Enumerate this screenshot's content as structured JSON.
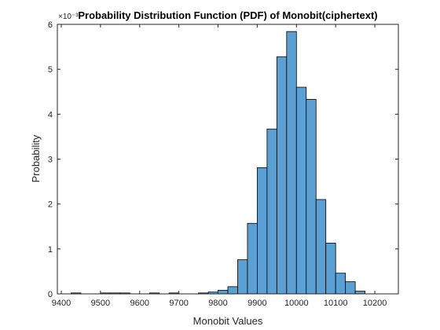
{
  "chart_data": {
    "type": "bar",
    "title": "Probability Distribution Function (PDF) of Monobit(ciphertext)",
    "xlabel": "Monobit Values",
    "ylabel": "Probability",
    "y_exponent_label": "×10⁻³",
    "xlim": [
      9400,
      10250
    ],
    "ylim": [
      0,
      0.006
    ],
    "y_tick_scale": 1000,
    "grid": false,
    "box": true,
    "bin_width": 25,
    "bar_color": "#5b9fd3",
    "bar_edge_color": "#000000",
    "x_ticks": [
      9400,
      9500,
      9600,
      9700,
      9800,
      9900,
      10000,
      10100,
      10200
    ],
    "y_ticks": [
      0,
      0.001,
      0.002,
      0.003,
      0.004,
      0.005,
      0.006
    ],
    "bins": [
      {
        "left": 9425,
        "value": 2e-05
      },
      {
        "left": 9500,
        "value": 2e-05
      },
      {
        "left": 9525,
        "value": 2e-05
      },
      {
        "left": 9550,
        "value": 2e-05
      },
      {
        "left": 9625,
        "value": 2e-05
      },
      {
        "left": 9675,
        "value": 2e-05
      },
      {
        "left": 9750,
        "value": 2e-05
      },
      {
        "left": 9775,
        "value": 4e-05
      },
      {
        "left": 9800,
        "value": 8e-05
      },
      {
        "left": 9825,
        "value": 0.00016
      },
      {
        "left": 9850,
        "value": 0.00076
      },
      {
        "left": 9875,
        "value": 0.00157
      },
      {
        "left": 9900,
        "value": 0.00281
      },
      {
        "left": 9925,
        "value": 0.00367
      },
      {
        "left": 9950,
        "value": 0.00528
      },
      {
        "left": 9975,
        "value": 0.00584
      },
      {
        "left": 10000,
        "value": 0.0046
      },
      {
        "left": 10025,
        "value": 0.00433
      },
      {
        "left": 10050,
        "value": 0.0021
      },
      {
        "left": 10075,
        "value": 0.00113
      },
      {
        "left": 10100,
        "value": 0.00046
      },
      {
        "left": 10125,
        "value": 0.00027
      },
      {
        "left": 10150,
        "value": 6e-05
      }
    ]
  }
}
